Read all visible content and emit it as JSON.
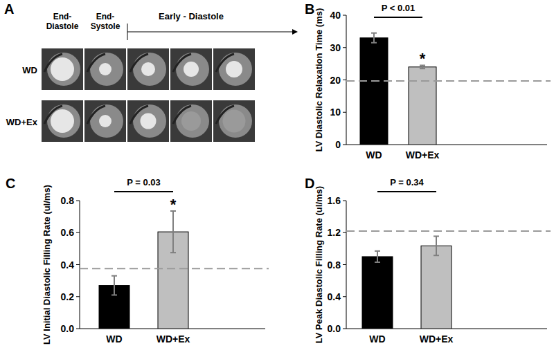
{
  "panel_a": {
    "label": "A",
    "columns": [
      "End-Diastole",
      "End-Systole"
    ],
    "span_label": "Early - Diastole",
    "rows": [
      "WD",
      "WD+Ex"
    ]
  },
  "chart_data": [
    {
      "type": "bar",
      "title": "B",
      "y_label": "LV Diastolic Relaxation Time (ms)",
      "categories": [
        "WD",
        "WD+Ex"
      ],
      "values": [
        33,
        24
      ],
      "errors": [
        1.5,
        0.5
      ],
      "colors": [
        "#000000",
        "#bfbfbf"
      ],
      "reference_line": 19.7,
      "ylim": [
        0,
        40
      ],
      "yticks": [
        0,
        10,
        20,
        30,
        40
      ],
      "annotations": [
        {
          "text": "P < 0.01"
        },
        {
          "text": "*",
          "category": 1
        }
      ]
    },
    {
      "type": "bar",
      "title": "C",
      "y_label": "LV Initial Diastolic Filling Rate (ul/ms)",
      "categories": [
        "WD",
        "WD+Ex"
      ],
      "values": [
        0.27,
        0.605
      ],
      "errors": [
        0.06,
        0.13
      ],
      "colors": [
        "#000000",
        "#bfbfbf"
      ],
      "reference_line": 0.375,
      "ylim": [
        0,
        0.8
      ],
      "yticks": [
        {
          "value": 0,
          "label": "0.0"
        },
        0.2,
        0.4,
        0.6,
        0.8
      ],
      "annotations": [
        {
          "text": "P = 0.03"
        },
        {
          "text": "*",
          "category": 1
        }
      ]
    },
    {
      "type": "bar",
      "title": "D",
      "y_label": "LV Peak Diastolic Filling Rate (ul/ms)",
      "categories": [
        "WD",
        "WD+Ex"
      ],
      "values": [
        0.9,
        1.035
      ],
      "errors": [
        0.07,
        0.12
      ],
      "colors": [
        "#000000",
        "#bfbfbf"
      ],
      "reference_line": 1.22,
      "ylim": [
        0,
        1.6
      ],
      "yticks": [
        {
          "value": 0,
          "label": "0.0"
        },
        0.4,
        0.8,
        1.2,
        1.6
      ],
      "annotations": [
        {
          "text": "P = 0.34"
        }
      ]
    }
  ]
}
